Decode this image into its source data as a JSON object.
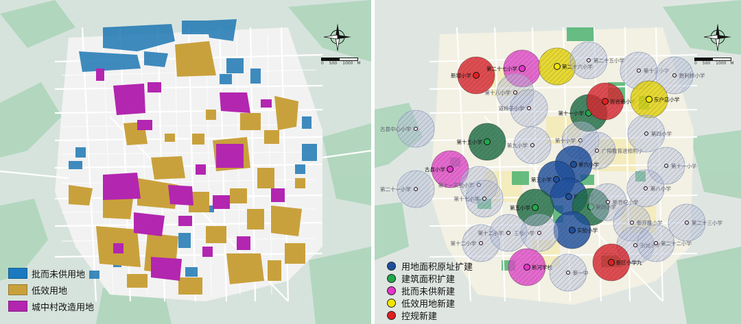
{
  "left_map": {
    "legend": [
      {
        "label": "批而未供用地",
        "color": "#1a7ac0"
      },
      {
        "label": "低效用地",
        "color": "#c9a13c"
      },
      {
        "label": "城中村改造用地",
        "color": "#b326b0"
      }
    ],
    "scale_labels": [
      "0",
      "500",
      "1000",
      "M"
    ]
  },
  "right_map": {
    "legend": [
      {
        "label": "用地面积原址扩建",
        "color": "#1f4f9c"
      },
      {
        "label": "建筑面积扩建",
        "color": "#21a84a"
      },
      {
        "label": "批而未供新建",
        "color": "#e236c8"
      },
      {
        "label": "低效用地新建",
        "color": "#f2e600"
      },
      {
        "label": "控规新建",
        "color": "#e02020"
      }
    ],
    "scale_labels": [
      "0",
      "500",
      "1000",
      "M"
    ],
    "schools": [
      {
        "label": "新增小学",
        "type": "red"
      },
      {
        "label": "第二十七小学",
        "type": "pink"
      },
      {
        "label": "第二十六小学",
        "type": "yellow"
      },
      {
        "label": "第二十五小学",
        "type": "grey"
      },
      {
        "label": "第十三小学",
        "type": "grey"
      },
      {
        "label": "胜利桥小学",
        "type": "grey"
      },
      {
        "label": "第十八小学",
        "type": "grey"
      },
      {
        "label": "道岭子小学",
        "type": "grey"
      },
      {
        "label": "第十一小学",
        "type": "green"
      },
      {
        "label": "百合南小学",
        "type": "red"
      },
      {
        "label": "东户店小学",
        "type": "yellow"
      },
      {
        "label": "古县中心小学",
        "type": "grey"
      },
      {
        "label": "第十五小学",
        "type": "green"
      },
      {
        "label": "第九小学",
        "type": "grey"
      },
      {
        "label": "第十小学",
        "type": "grey"
      },
      {
        "label": "广阳教育进修附小",
        "type": "grey"
      },
      {
        "label": "第四小学",
        "type": "grey"
      },
      {
        "label": "古县小学",
        "type": "pink"
      },
      {
        "label": "第六小学",
        "type": "blue"
      },
      {
        "label": "第三小学",
        "type": "blue"
      },
      {
        "label": "第十一小学",
        "type": "grey"
      },
      {
        "label": "第二十一小学",
        "type": "grey"
      },
      {
        "label": "第十一实验小学",
        "type": "grey"
      },
      {
        "label": "第十七小学",
        "type": "grey"
      },
      {
        "label": "第二小学",
        "type": "blue"
      },
      {
        "label": "第五小学",
        "type": "green"
      },
      {
        "label": "第四小学",
        "type": "green"
      },
      {
        "label": "第八小学",
        "type": "grey"
      },
      {
        "label": "新世纪小学",
        "type": "grey"
      },
      {
        "label": "实验小学",
        "type": "blue"
      },
      {
        "label": "第二十三小学",
        "type": "grey"
      },
      {
        "label": "第十二小学",
        "type": "grey"
      },
      {
        "label": "新开路小学",
        "type": "grey"
      },
      {
        "label": "王帐小学",
        "type": "grey"
      },
      {
        "label": "第十二小学",
        "type": "grey"
      },
      {
        "label": "南城小学",
        "type": "grey"
      },
      {
        "label": "第二十二小学",
        "type": "grey"
      },
      {
        "label": "新河学校",
        "type": "pink"
      },
      {
        "label": "新一中",
        "type": "grey"
      },
      {
        "label": "新区小学九",
        "type": "red"
      }
    ]
  }
}
